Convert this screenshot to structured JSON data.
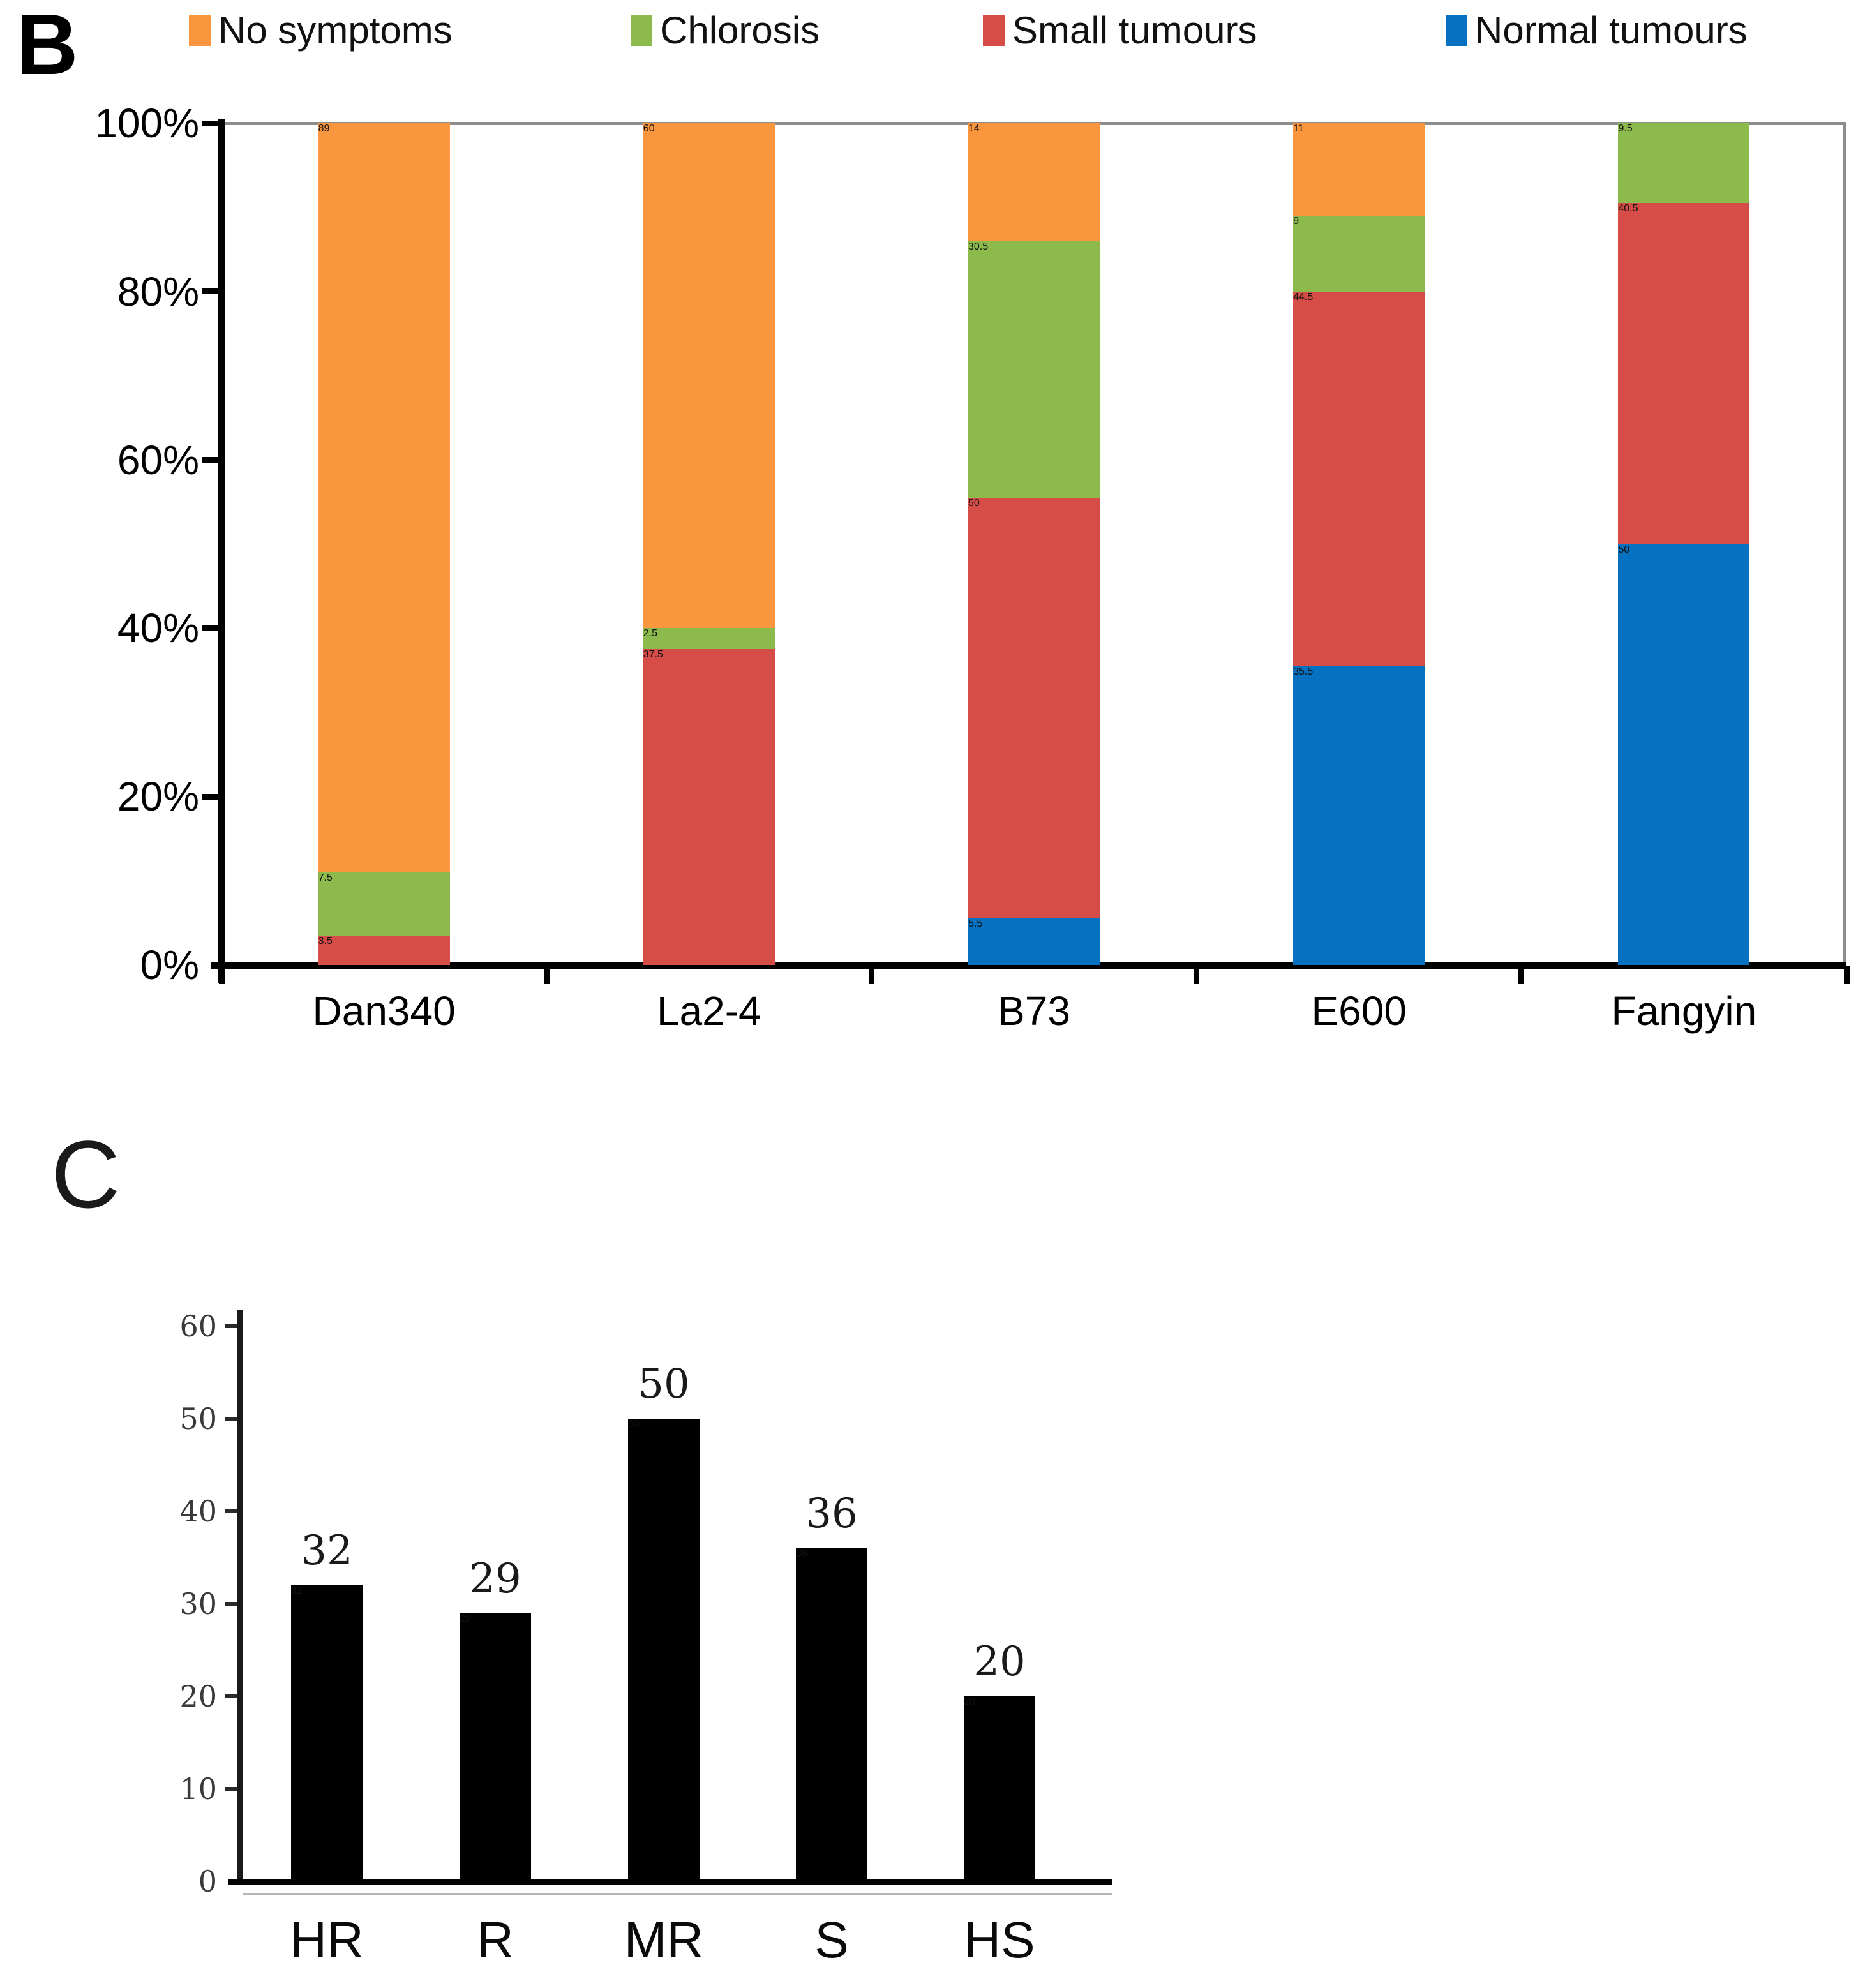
{
  "panelB": {
    "label": "B",
    "legend": [
      {
        "label": "No symptoms",
        "color": "#F9963E"
      },
      {
        "label": "Chlorosis",
        "color": "#8CBA4D"
      },
      {
        "label": "Small tumours",
        "color": "#D64D47"
      },
      {
        "label": "Normal tumours",
        "color": "#0571C0"
      }
    ],
    "y_axis_labels": [
      "100%",
      "80%",
      "60%",
      "40%",
      "20%",
      "0%"
    ]
  },
  "panelC": {
    "label": "C",
    "y_axis_labels": [
      "60",
      "50",
      "40",
      "30",
      "20",
      "10",
      "0"
    ]
  },
  "chart_data": [
    {
      "type": "bar",
      "stacked": true,
      "categories": [
        "Dan340",
        "La2-4",
        "B73",
        "E600",
        "Fangyin"
      ],
      "series": [
        {
          "name": "Normal tumours",
          "color": "#0571C0",
          "values": [
            0,
            0,
            5.5,
            35.5,
            50
          ]
        },
        {
          "name": "Small tumours",
          "color": "#D64D47",
          "values": [
            3.5,
            37.5,
            50,
            44.5,
            40.5
          ]
        },
        {
          "name": "Chlorosis",
          "color": "#8CBA4D",
          "values": [
            7.5,
            2.5,
            30.5,
            9,
            9.5
          ]
        },
        {
          "name": "No symptoms",
          "color": "#F9963E",
          "values": [
            89,
            60,
            14,
            11,
            0
          ]
        }
      ],
      "ylim": [
        0,
        100
      ],
      "y_ticks": [
        0,
        20,
        40,
        60,
        80,
        100
      ],
      "y_tick_format": "percent",
      "legend_position": "top",
      "grid": false
    },
    {
      "type": "bar",
      "categories": [
        "HR",
        "R",
        "MR",
        "S",
        "HS"
      ],
      "values": [
        32,
        29,
        50,
        36,
        20
      ],
      "value_labels": [
        "32",
        "29",
        "50",
        "36",
        "20"
      ],
      "bar_color": "#000000",
      "ylim": [
        0,
        60
      ],
      "y_ticks": [
        0,
        10,
        20,
        30,
        40,
        50,
        60
      ],
      "grid": false
    }
  ]
}
